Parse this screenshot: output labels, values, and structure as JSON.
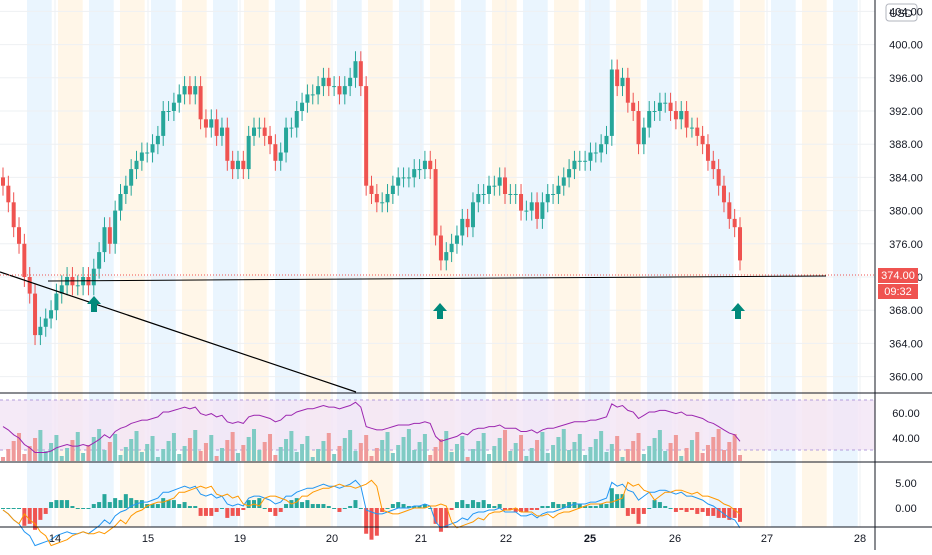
{
  "currency_label": "USD",
  "colors": {
    "up": "#26a69a",
    "down": "#ef5350",
    "rsi_line": "#9c27b0",
    "rsi_band_fill": "#f3e5f5",
    "macd_line": "#2196f3",
    "signal_line": "#ff9800",
    "session_blue": "#e3f2fd",
    "session_orange": "#fff3e0",
    "arrow": "#00897b",
    "trendline": "#000000",
    "price_tag": "#ef5350"
  },
  "chart_data": [
    {
      "type": "candlestick",
      "title": "",
      "price_axis": {
        "ticks": [
          "404.00",
          "400.00",
          "396.00",
          "392.00",
          "388.00",
          "384.00",
          "380.00",
          "376.00",
          "372.00",
          "368.00",
          "364.00",
          "360.00"
        ],
        "ylim": [
          360,
          405
        ]
      },
      "time_axis": {
        "ticks": [
          "14",
          "15",
          "19",
          "20",
          "21",
          "22",
          "25",
          "26",
          "27",
          "28"
        ],
        "bold": [
          "25"
        ]
      },
      "last_price": "374.00",
      "countdown": "09:32",
      "closes": [
        383,
        381,
        378,
        376,
        372,
        370,
        365,
        366,
        367,
        368,
        370,
        371,
        372,
        371,
        371,
        372,
        371,
        373,
        375,
        378,
        376,
        380,
        382,
        383,
        385,
        386,
        387,
        387,
        388,
        389,
        392,
        392,
        393,
        394,
        395,
        394,
        395,
        391,
        390,
        391,
        389,
        390,
        386,
        385,
        386,
        385,
        389,
        390,
        390,
        389,
        388,
        386,
        387,
        390,
        390,
        392,
        393,
        394,
        394,
        395,
        396,
        395,
        395,
        394,
        395,
        396,
        398,
        395,
        383,
        382,
        381,
        381,
        382,
        383,
        384,
        384,
        384,
        385,
        385,
        386,
        385,
        377,
        374,
        375,
        376,
        377,
        379,
        378,
        381,
        382,
        382,
        383,
        383,
        384,
        382,
        382,
        382,
        380,
        380,
        381,
        379,
        381,
        382,
        382,
        383,
        384,
        385,
        386,
        386,
        386,
        387,
        387,
        388,
        389,
        397,
        395,
        396,
        393,
        392,
        388,
        390,
        392,
        392,
        393,
        393,
        392,
        391,
        392,
        390,
        390,
        389,
        388,
        386,
        385,
        383,
        381,
        379,
        378,
        374
      ],
      "events": [
        "buy-arrow at day 14",
        "buy-arrow at day 21",
        "buy-arrow at day 26 end"
      ]
    },
    {
      "type": "rsi",
      "axis_ticks": [
        "60.00",
        "40.00"
      ],
      "band": [
        30,
        70
      ]
    },
    {
      "type": "macd",
      "axis_ticks": [
        "5.00",
        "0.00"
      ]
    }
  ]
}
